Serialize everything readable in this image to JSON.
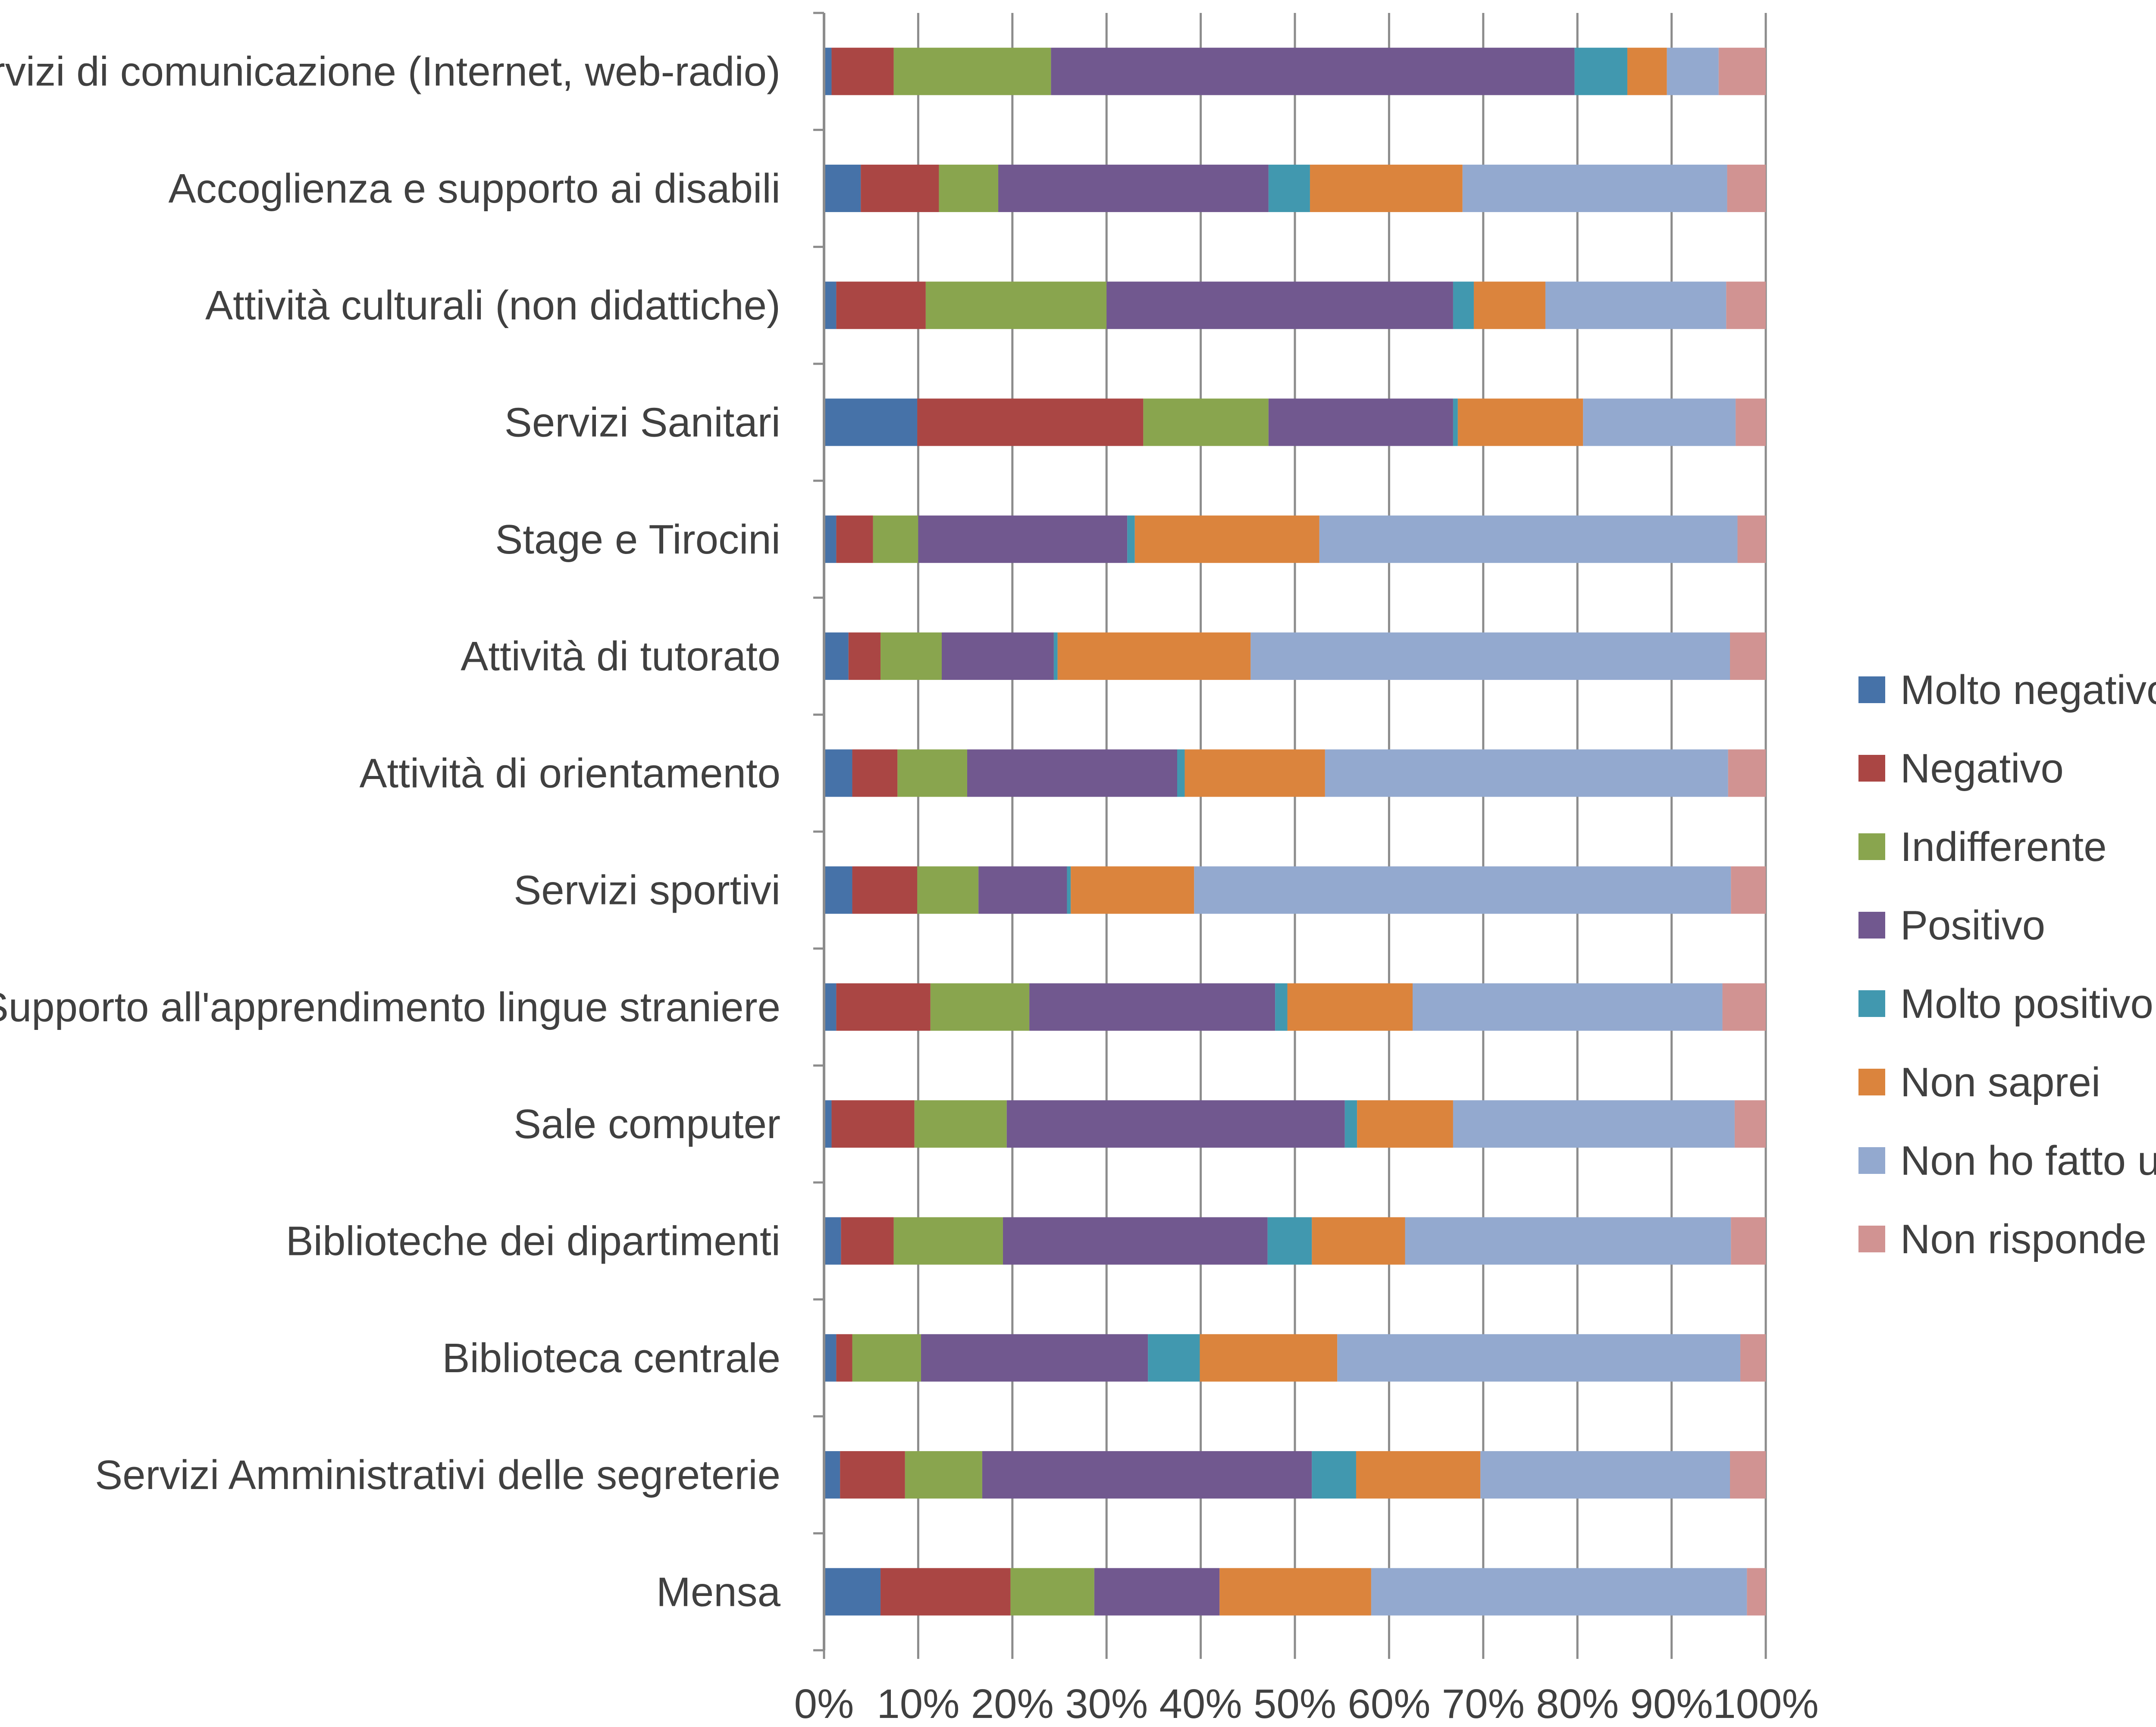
{
  "chart_data": {
    "type": "bar",
    "orientation": "horizontal",
    "stacked": "percent",
    "xlim": [
      0,
      100
    ],
    "x_ticks": [
      "0%",
      "10%",
      "20%",
      "30%",
      "40%",
      "50%",
      "60%",
      "70%",
      "80%",
      "90%",
      "100%"
    ],
    "grid": "vertical gridlines at each 10%",
    "legend_position": "right",
    "categories": [
      "Servizi di comunicazione (Internet, web-radio)",
      "Accoglienza e supporto ai disabili",
      "Attività culturali (non didattiche)",
      "Servizi Sanitari",
      "Stage e Tirocini",
      "Attività di tutorato",
      "Attività di orientamento",
      "Servizi sportivi",
      "Supporto all'apprendimento lingue straniere",
      "Sale computer",
      "Biblioteche dei dipartimenti",
      "Biblioteca centrale",
      "Servizi Amministrativi delle segreterie",
      "Mensa"
    ],
    "series": [
      {
        "name": "Molto negativo",
        "color": "#4672a8",
        "values": [
          0.8,
          3.9,
          1.3,
          9.9,
          1.3,
          2.6,
          3.0,
          3.0,
          1.3,
          0.8,
          1.8,
          1.3,
          1.7,
          6.0
        ]
      },
      {
        "name": "Negativo",
        "color": "#aa4644",
        "values": [
          6.6,
          8.3,
          9.5,
          24.0,
          3.9,
          3.4,
          4.8,
          6.9,
          10.0,
          8.8,
          5.6,
          1.7,
          6.9,
          13.8
        ]
      },
      {
        "name": "Indifferente",
        "color": "#89a54e",
        "values": [
          16.7,
          6.3,
          19.2,
          13.3,
          4.8,
          6.5,
          7.4,
          6.5,
          10.5,
          9.8,
          11.6,
          7.3,
          8.2,
          8.9
        ]
      },
      {
        "name": "Positivo",
        "color": "#71588f",
        "values": [
          55.6,
          28.7,
          36.8,
          19.6,
          22.2,
          11.9,
          22.3,
          9.4,
          26.1,
          35.9,
          28.1,
          24.1,
          35.0,
          13.3
        ]
      },
      {
        "name": "Molto positivo",
        "color": "#4198af",
        "values": [
          5.6,
          4.4,
          2.2,
          0.5,
          0.8,
          0.4,
          0.8,
          0.4,
          1.3,
          1.3,
          4.7,
          5.5,
          4.7,
          0.0
        ]
      },
      {
        "name": "Non saprei",
        "color": "#db843d",
        "values": [
          4.2,
          16.2,
          7.6,
          13.3,
          19.6,
          20.5,
          14.9,
          13.1,
          13.3,
          10.2,
          9.9,
          14.6,
          13.2,
          16.1
        ]
      },
      {
        "name": "Non ho fatto uso",
        "color": "#93a9cf",
        "values": [
          5.5,
          28.1,
          19.2,
          16.2,
          44.4,
          50.9,
          42.8,
          57.0,
          32.9,
          29.9,
          34.6,
          42.8,
          26.5,
          39.9
        ]
      },
      {
        "name": "Non risponde",
        "color": "#d19392",
        "values": [
          5.0,
          4.1,
          4.2,
          3.2,
          3.0,
          3.8,
          4.0,
          3.7,
          4.6,
          3.3,
          3.7,
          2.7,
          3.8,
          2.0
        ]
      }
    ]
  }
}
